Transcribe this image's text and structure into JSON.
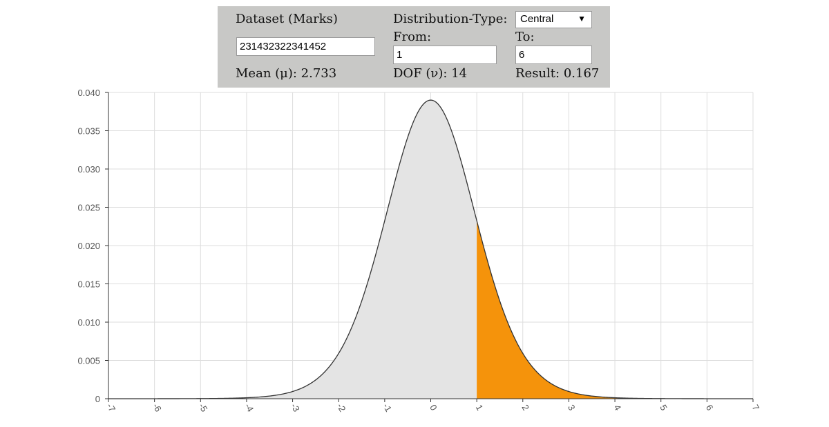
{
  "panel": {
    "dataset_label": "Dataset (Marks)",
    "dataset_value": "231432322341452",
    "mean_label": "Mean (μ):",
    "mean_value": "2.733",
    "dist_type_label": "Distribution-Type:",
    "dist_type_value": "Central",
    "from_label": "From:",
    "from_value": "1",
    "to_label": "To:",
    "to_value": "6",
    "dof_label": "DOF (ν):",
    "dof_value": "14",
    "result_label": "Result:",
    "result_value": "0.167"
  },
  "chart_data": {
    "type": "area",
    "distribution": "student-t",
    "dof": 14,
    "peak": 0.039,
    "shade_from": 1,
    "shade_to": 6,
    "xlim": [
      -7,
      7
    ],
    "ylim": [
      0,
      0.04
    ],
    "xticks": [
      -7,
      -6,
      -5,
      -4,
      -3,
      -2,
      -1,
      0,
      1,
      2,
      3,
      4,
      5,
      6,
      7
    ],
    "yticks": [
      0,
      0.005,
      0.01,
      0.015,
      0.02,
      0.025,
      0.03,
      0.035,
      0.04
    ],
    "ytick_labels": [
      "0",
      "0.005",
      "0.010",
      "0.015",
      "0.020",
      "0.025",
      "0.030",
      "0.035",
      "0.040"
    ],
    "grid": true,
    "colors": {
      "curve_fill": "#e4e4e4",
      "shaded": "#f5930b",
      "curve_line": "#333333",
      "grid": "#dddddd"
    }
  }
}
